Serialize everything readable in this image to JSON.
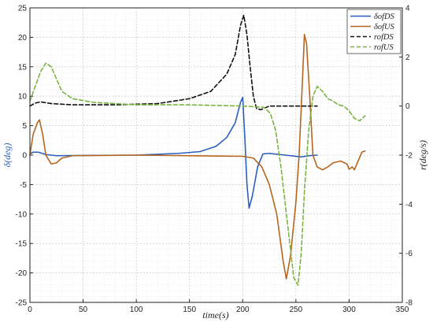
{
  "chart_data": {
    "type": "line",
    "xlabel": "time(s)",
    "ylabel_left": "δ(deg)",
    "ylabel_right": "r(deg/s)",
    "xlim": [
      0,
      350
    ],
    "ylim_left": [
      -25,
      25
    ],
    "ylim_right": [
      -8,
      4
    ],
    "xticks": [
      0,
      50,
      100,
      150,
      200,
      250,
      300,
      350
    ],
    "yticks_left": [
      -25,
      -20,
      -15,
      -10,
      -5,
      0,
      5,
      10,
      15,
      20,
      25
    ],
    "yticks_right": [
      -8,
      -6,
      -4,
      -2,
      0,
      2,
      4
    ],
    "grid": true,
    "legend_position": "top-right",
    "series": [
      {
        "name": "δofDS",
        "axis": "left",
        "color": "#2a5fbd",
        "dash": "solid",
        "points": [
          [
            0,
            0.2
          ],
          [
            3,
            0.5
          ],
          [
            8,
            0.5
          ],
          [
            15,
            0.1
          ],
          [
            25,
            -0.1
          ],
          [
            50,
            -0.05
          ],
          [
            100,
            0
          ],
          [
            140,
            0.3
          ],
          [
            160,
            0.6
          ],
          [
            175,
            1.5
          ],
          [
            185,
            3
          ],
          [
            193,
            5.5
          ],
          [
            198,
            9
          ],
          [
            200,
            9.8
          ],
          [
            202,
            3
          ],
          [
            204,
            -5
          ],
          [
            206,
            -9
          ],
          [
            209,
            -7
          ],
          [
            214,
            -2
          ],
          [
            219,
            0.2
          ],
          [
            225,
            0.3
          ],
          [
            240,
            0
          ],
          [
            255,
            -0.3
          ],
          [
            262,
            -0.1
          ],
          [
            270,
            0
          ]
        ]
      },
      {
        "name": "δofUS",
        "axis": "left",
        "color": "#b5651d",
        "dash": "solid",
        "points": [
          [
            0,
            0
          ],
          [
            3,
            3.5
          ],
          [
            7,
            5.5
          ],
          [
            9,
            6
          ],
          [
            12,
            3.5
          ],
          [
            15,
            0
          ],
          [
            20,
            -1.5
          ],
          [
            25,
            -1.3
          ],
          [
            30,
            -0.5
          ],
          [
            40,
            -0.1
          ],
          [
            100,
            0
          ],
          [
            150,
            -0.1
          ],
          [
            200,
            -0.2
          ],
          [
            210,
            -0.5
          ],
          [
            218,
            -2
          ],
          [
            225,
            -5
          ],
          [
            232,
            -10
          ],
          [
            238,
            -18
          ],
          [
            241,
            -21
          ],
          [
            245,
            -17
          ],
          [
            250,
            -8
          ],
          [
            253,
            0
          ],
          [
            256,
            12
          ],
          [
            258,
            20.5
          ],
          [
            260,
            19
          ],
          [
            263,
            10
          ],
          [
            266,
            0
          ],
          [
            270,
            -2
          ],
          [
            275,
            -2.5
          ],
          [
            280,
            -2
          ],
          [
            285,
            -1.3
          ],
          [
            292,
            -1
          ],
          [
            298,
            -1.5
          ],
          [
            300,
            -2.4
          ],
          [
            303,
            -2
          ],
          [
            305,
            -2.5
          ],
          [
            308,
            -1.2
          ],
          [
            312,
            0.5
          ],
          [
            315,
            0.7
          ]
        ]
      },
      {
        "name": "rofDS",
        "axis": "right",
        "color": "#111111",
        "dash": "dashed",
        "points": [
          [
            0,
            0
          ],
          [
            5,
            0.12
          ],
          [
            10,
            0.17
          ],
          [
            20,
            0.1
          ],
          [
            40,
            0.05
          ],
          [
            80,
            0.05
          ],
          [
            120,
            0.1
          ],
          [
            150,
            0.3
          ],
          [
            170,
            0.6
          ],
          [
            185,
            1.3
          ],
          [
            193,
            2.1
          ],
          [
            198,
            3.3
          ],
          [
            201,
            3.7
          ],
          [
            204,
            2.9
          ],
          [
            207,
            1.6
          ],
          [
            210,
            0.4
          ],
          [
            213,
            -0.1
          ],
          [
            217,
            -0.15
          ],
          [
            225,
            0
          ],
          [
            240,
            0
          ],
          [
            260,
            0
          ],
          [
            270,
            0
          ]
        ]
      },
      {
        "name": "rofUS",
        "axis": "right",
        "color": "#7cb342",
        "dash": "dashed",
        "points": [
          [
            0,
            0.2
          ],
          [
            5,
            0.8
          ],
          [
            10,
            1.4
          ],
          [
            15,
            1.75
          ],
          [
            20,
            1.6
          ],
          [
            25,
            1.1
          ],
          [
            30,
            0.6
          ],
          [
            40,
            0.3
          ],
          [
            60,
            0.15
          ],
          [
            100,
            0.05
          ],
          [
            150,
            0.05
          ],
          [
            200,
            0
          ],
          [
            220,
            -0.05
          ],
          [
            226,
            -0.3
          ],
          [
            231,
            -1
          ],
          [
            236,
            -2.5
          ],
          [
            240,
            -4
          ],
          [
            244,
            -5.5
          ],
          [
            248,
            -7
          ],
          [
            252,
            -7.3
          ],
          [
            255,
            -6
          ],
          [
            258,
            -3.5
          ],
          [
            262,
            -1
          ],
          [
            266,
            0.4
          ],
          [
            270,
            0.8
          ],
          [
            275,
            0.6
          ],
          [
            280,
            0.3
          ],
          [
            285,
            0.2
          ],
          [
            290,
            0.05
          ],
          [
            295,
            0
          ],
          [
            300,
            -0.2
          ],
          [
            305,
            -0.5
          ],
          [
            310,
            -0.6
          ],
          [
            315,
            -0.4
          ]
        ]
      }
    ]
  }
}
